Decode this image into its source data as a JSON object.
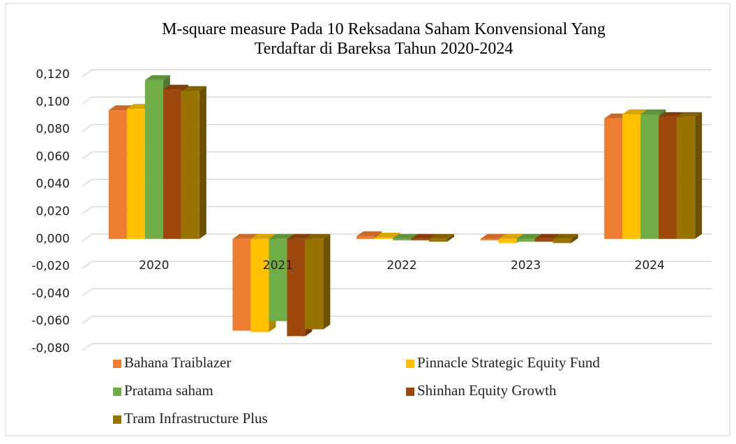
{
  "chart_data": {
    "type": "bar3d",
    "title": "M-square measure Pada 10 Reksadana Saham Konvensional Yang Terdaftar di Bareksa Tahun 2020-2024",
    "categories": [
      "2020",
      "2021",
      "2022",
      "2023",
      "2024"
    ],
    "series": [
      {
        "name": "Bahana Traiblazer",
        "color": "#ed7d31",
        "values": [
          0.094,
          -0.067,
          0.002,
          -0.001,
          0.088
        ]
      },
      {
        "name": "Pinnacle Strategic Equity Fund",
        "color": "#ffc000",
        "values": [
          0.095,
          -0.068,
          0.001,
          -0.003,
          0.091
        ]
      },
      {
        "name": "Pratama saham",
        "color": "#70ad47",
        "values": [
          0.116,
          -0.06,
          -0.001,
          -0.002,
          0.091
        ]
      },
      {
        "name": "Shinhan Equity Growth",
        "color": "#9e480e",
        "values": [
          0.109,
          -0.071,
          -0.001,
          -0.002,
          0.089
        ]
      },
      {
        "name": "Tram Infrastructure Plus",
        "color": "#997300",
        "values": [
          0.108,
          -0.066,
          -0.002,
          -0.003,
          0.089
        ]
      }
    ],
    "ylim": [
      -0.08,
      0.12
    ],
    "yticks": [
      {
        "value": -0.08,
        "label": "-0,080"
      },
      {
        "value": -0.06,
        "label": "-0,060"
      },
      {
        "value": -0.04,
        "label": "-0,040"
      },
      {
        "value": -0.02,
        "label": "-0,020"
      },
      {
        "value": 0,
        "label": "0,000"
      },
      {
        "value": 0.02,
        "label": "0,020"
      },
      {
        "value": 0.04,
        "label": "0,040"
      },
      {
        "value": 0.06,
        "label": "0,060"
      },
      {
        "value": 0.08,
        "label": "0,080"
      },
      {
        "value": 0.1,
        "label": "0,100"
      },
      {
        "value": 0.12,
        "label": "0,120"
      }
    ],
    "grid": true,
    "legend": "bottom"
  }
}
